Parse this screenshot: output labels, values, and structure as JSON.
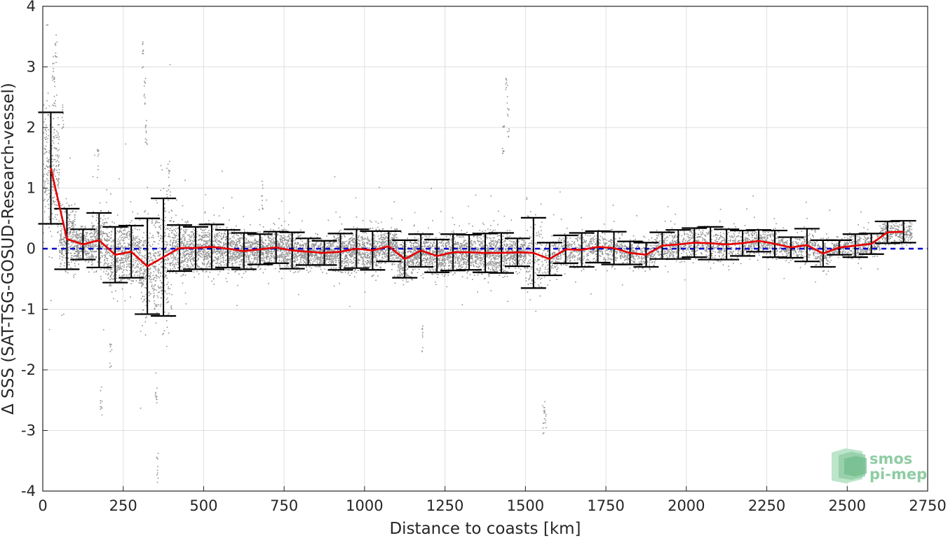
{
  "chart_data": {
    "type": "scatter",
    "xlabel": "Distance to coasts [km]",
    "ylabel": "Δ SSS (SAT-TSG-GOSUD-Research-vessel)",
    "xlim": [
      0,
      2750
    ],
    "ylim": [
      -4,
      4
    ],
    "xticks": [
      0,
      250,
      500,
      750,
      1000,
      1250,
      1500,
      1750,
      2000,
      2250,
      2500,
      2750
    ],
    "yticks": [
      -4,
      -3,
      -2,
      -1,
      0,
      1,
      2,
      3,
      4
    ],
    "grid": true,
    "reference_line": {
      "y": 0,
      "color": "#0000cc",
      "style": "dashed"
    },
    "series": [
      {
        "role": "mean",
        "color": "#e60000",
        "x": [
          25,
          75,
          125,
          175,
          225,
          275,
          325,
          375,
          425,
          475,
          525,
          575,
          625,
          675,
          725,
          775,
          825,
          875,
          925,
          975,
          1025,
          1075,
          1125,
          1175,
          1225,
          1275,
          1325,
          1375,
          1425,
          1475,
          1525,
          1575,
          1625,
          1675,
          1725,
          1775,
          1825,
          1875,
          1925,
          1975,
          2025,
          2075,
          2125,
          2175,
          2225,
          2275,
          2325,
          2375,
          2425,
          2475,
          2525,
          2575,
          2625,
          2675
        ],
        "y": [
          1.33,
          0.16,
          0.07,
          0.14,
          -0.1,
          -0.05,
          -0.29,
          -0.14,
          0.01,
          0.01,
          0.03,
          0.0,
          -0.04,
          -0.01,
          0.02,
          -0.03,
          -0.05,
          -0.07,
          -0.05,
          0.0,
          -0.03,
          0.04,
          -0.17,
          -0.03,
          -0.12,
          -0.06,
          -0.06,
          -0.07,
          -0.07,
          -0.06,
          -0.07,
          -0.17,
          -0.01,
          -0.02,
          0.03,
          0.01,
          -0.07,
          -0.1,
          0.05,
          0.07,
          0.1,
          0.09,
          0.07,
          0.09,
          0.13,
          0.08,
          0.02,
          0.06,
          -0.08,
          0.02,
          0.05,
          0.08,
          0.27,
          0.28
        ],
        "err": [
          0.92,
          0.5,
          0.25,
          0.45,
          0.46,
          0.43,
          0.79,
          0.97,
          0.38,
          0.35,
          0.37,
          0.31,
          0.3,
          0.25,
          0.26,
          0.3,
          0.22,
          0.2,
          0.3,
          0.32,
          0.32,
          0.25,
          0.31,
          0.27,
          0.27,
          0.3,
          0.29,
          0.32,
          0.33,
          0.23,
          0.58,
          0.27,
          0.23,
          0.28,
          0.26,
          0.27,
          0.19,
          0.2,
          0.22,
          0.24,
          0.24,
          0.27,
          0.25,
          0.21,
          0.18,
          0.22,
          0.17,
          0.27,
          0.22,
          0.12,
          0.19,
          0.17,
          0.18,
          0.18
        ]
      },
      {
        "role": "individual differences",
        "color": "#808080"
      }
    ]
  },
  "logo": {
    "line1": "smos",
    "line2": "pi-mep"
  }
}
